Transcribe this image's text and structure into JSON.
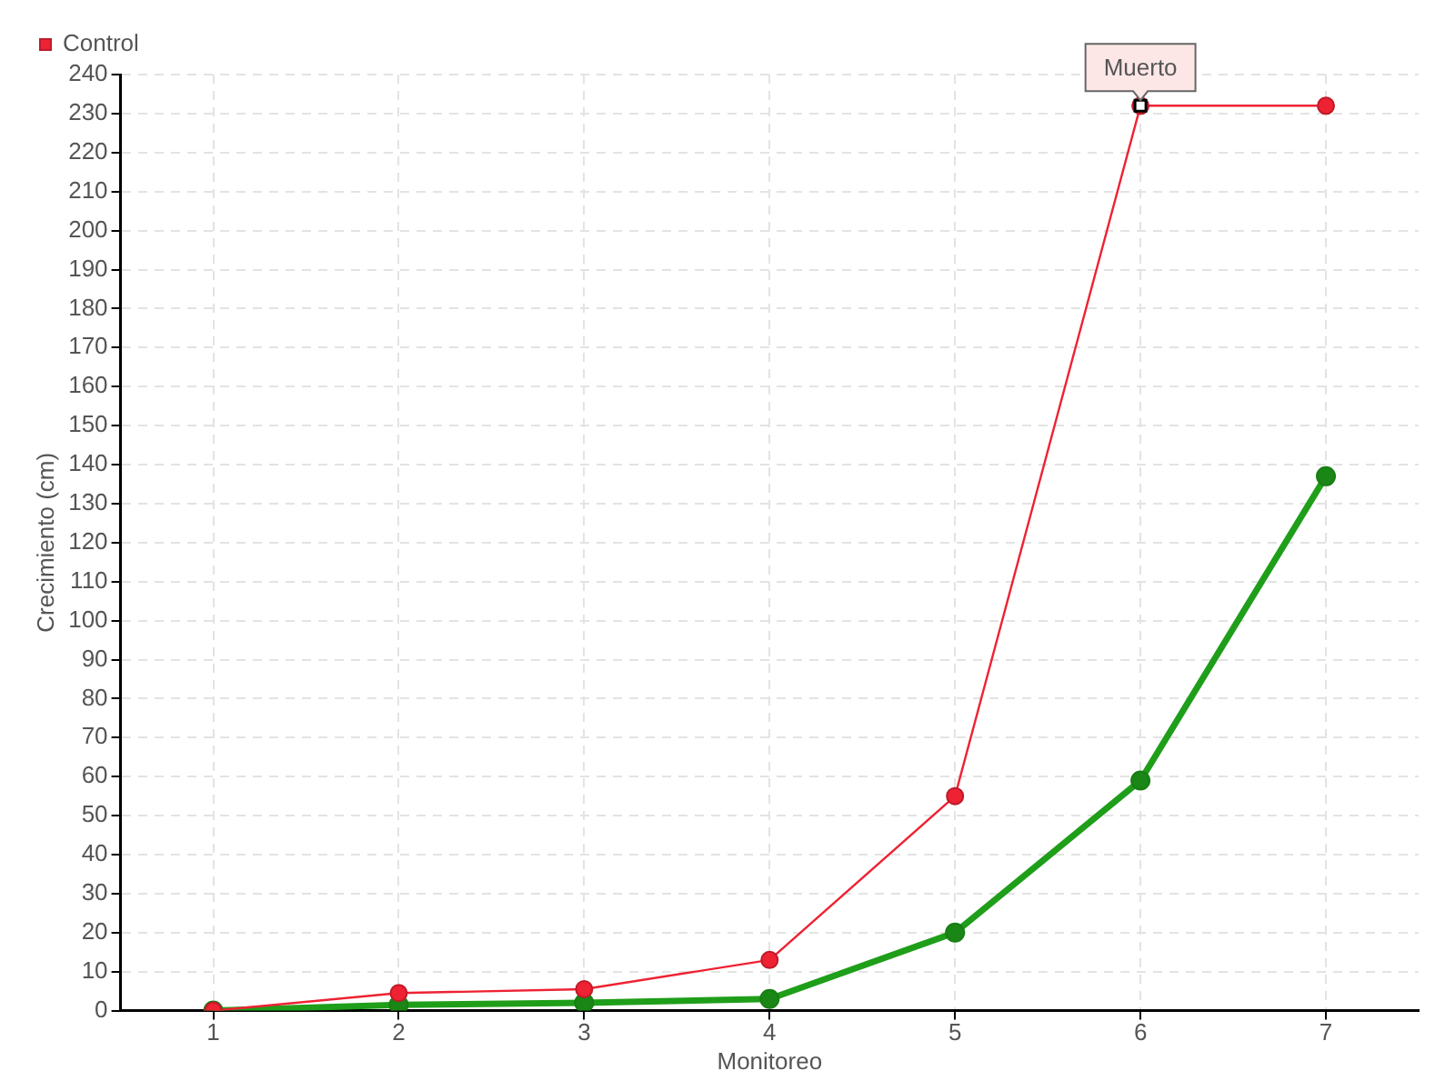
{
  "chart_data": {
    "type": "line",
    "xlabel": "Monitoreo",
    "ylabel": "Crecimiento (cm)",
    "categories": [
      "1",
      "2",
      "3",
      "4",
      "5",
      "6",
      "7"
    ],
    "series": [
      {
        "color": "#1f9e1a",
        "values": [
          0,
          1.5,
          2,
          3,
          20,
          59,
          137
        ]
      },
      {
        "name": "Control",
        "color": "#ee2233",
        "values": [
          0,
          4.5,
          5.5,
          13,
          55,
          232,
          232
        ]
      }
    ],
    "ylim": [
      0,
      240
    ],
    "yticks": [
      0,
      10,
      20,
      30,
      40,
      50,
      60,
      70,
      80,
      90,
      100,
      110,
      120,
      130,
      140,
      150,
      160,
      170,
      180,
      190,
      200,
      210,
      220,
      230,
      240
    ],
    "grid": true,
    "legend": "top left",
    "marker": "circle",
    "line_style": "solid",
    "annotations": [
      {
        "text": "Muerto",
        "x": "6",
        "y": 232
      }
    ]
  }
}
